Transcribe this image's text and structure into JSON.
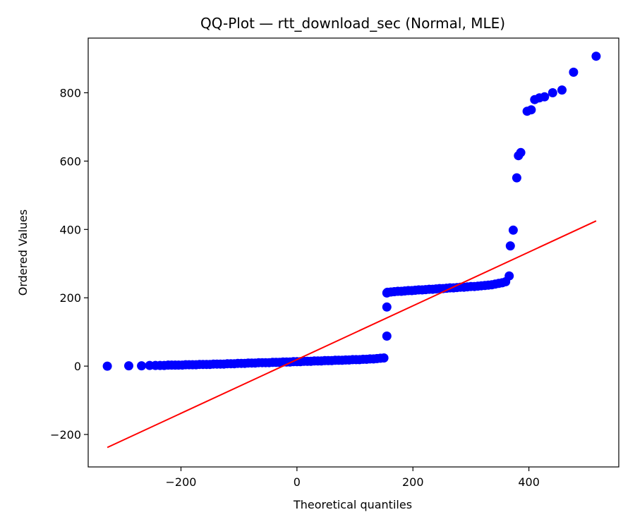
{
  "chart_data": {
    "type": "scatter",
    "title": "QQ-Plot — rtt_download_sec (Normal, MLE)",
    "xlabel": "Theoretical quantiles",
    "ylabel": "Ordered Values",
    "xlim": [
      -360,
      555
    ],
    "ylim": [
      -295,
      960
    ],
    "xticks": [
      -200,
      0,
      200,
      400
    ],
    "yticks": [
      -200,
      0,
      200,
      400,
      600,
      800
    ],
    "xtick_labels": [
      "−200",
      "0",
      "200",
      "400"
    ],
    "ytick_labels": [
      "−200",
      "0",
      "200",
      "400",
      "600",
      "800"
    ],
    "grid": false,
    "series": [
      {
        "kind": "points",
        "color": "#0000ff",
        "x": [
          -327,
          -290,
          -268,
          -254,
          -244,
          -236,
          -229,
          -222,
          -216,
          -210,
          -204,
          -198,
          -192,
          -186,
          -180,
          -174,
          -168,
          -162,
          -156,
          -150,
          -144,
          -138,
          -132,
          -126,
          -120,
          -114,
          -108,
          -102,
          -96,
          -90,
          -84,
          -78,
          -72,
          -66,
          -60,
          -54,
          -48,
          -42,
          -36,
          -30,
          -24,
          -18,
          -12,
          -6,
          0,
          6,
          12,
          18,
          24,
          30,
          36,
          42,
          48,
          54,
          60,
          66,
          72,
          78,
          84,
          90,
          96,
          102,
          108,
          114,
          120,
          126,
          132,
          138,
          144,
          150,
          155,
          155,
          155,
          156,
          162,
          168,
          174,
          180,
          186,
          192,
          198,
          204,
          210,
          216,
          222,
          228,
          234,
          240,
          246,
          252,
          258,
          264,
          270,
          276,
          282,
          288,
          294,
          300,
          306,
          312,
          318,
          324,
          330,
          336,
          342,
          348,
          354,
          360,
          366,
          368,
          373,
          379,
          382,
          386,
          397,
          404,
          410,
          418,
          427,
          441,
          457,
          477,
          516
        ],
        "y": [
          0,
          1,
          1,
          2,
          2,
          2,
          2,
          3,
          3,
          3,
          3,
          3,
          4,
          4,
          4,
          4,
          5,
          5,
          5,
          5,
          6,
          6,
          6,
          6,
          7,
          7,
          7,
          8,
          8,
          8,
          9,
          9,
          9,
          10,
          10,
          10,
          10,
          11,
          11,
          11,
          12,
          12,
          12,
          13,
          13,
          13,
          14,
          14,
          14,
          15,
          15,
          15,
          16,
          16,
          16,
          17,
          17,
          17,
          18,
          18,
          19,
          19,
          19,
          20,
          20,
          21,
          21,
          22,
          23,
          24,
          88,
          173,
          214,
          216,
          217,
          218,
          219,
          219,
          220,
          221,
          221,
          222,
          223,
          223,
          224,
          225,
          225,
          226,
          227,
          227,
          228,
          229,
          229,
          230,
          231,
          231,
          232,
          233,
          233,
          234,
          235,
          236,
          237,
          238,
          240,
          242,
          244,
          247,
          264,
          352,
          398,
          551,
          616,
          625,
          746,
          750,
          780,
          785,
          788,
          800,
          808,
          860,
          907
        ]
      },
      {
        "kind": "line",
        "color": "#ff0000",
        "x": [
          -327,
          516
        ],
        "y": [
          -238,
          425
        ]
      }
    ]
  }
}
